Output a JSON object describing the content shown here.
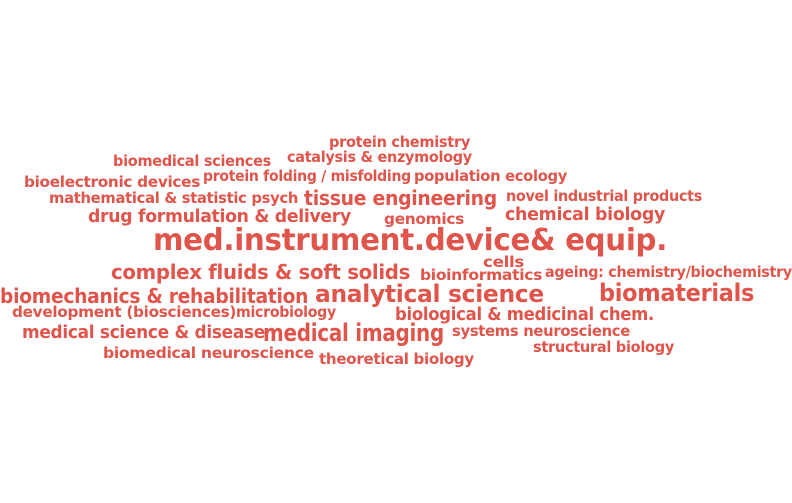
{
  "color": "#e0554b",
  "words": [
    "protein chemistry",
    "biomedical sciences",
    "catalysis & enzymology",
    "protein folding / misfolding",
    "population ecology",
    "bioelectronic devices",
    "mathematical & statistic psych",
    "tissue engineering",
    "novel industrial products",
    "drug formulation & delivery",
    "genomics",
    "chemical biology",
    "med.instrument.device& equip.",
    "complex fluids & soft solids",
    "cells",
    "bioinformatics",
    "ageing: chemistry/biochemistry",
    "biomechanics & rehabilitation",
    "analytical science",
    "biomaterials",
    "development (biosciences)",
    "microbiology",
    "biological & medicinal chem.",
    "medical science & disease",
    "medical imaging",
    "systems neuroscience",
    "structural biology",
    "biomedical neuroscience",
    "theoretical biology"
  ]
}
